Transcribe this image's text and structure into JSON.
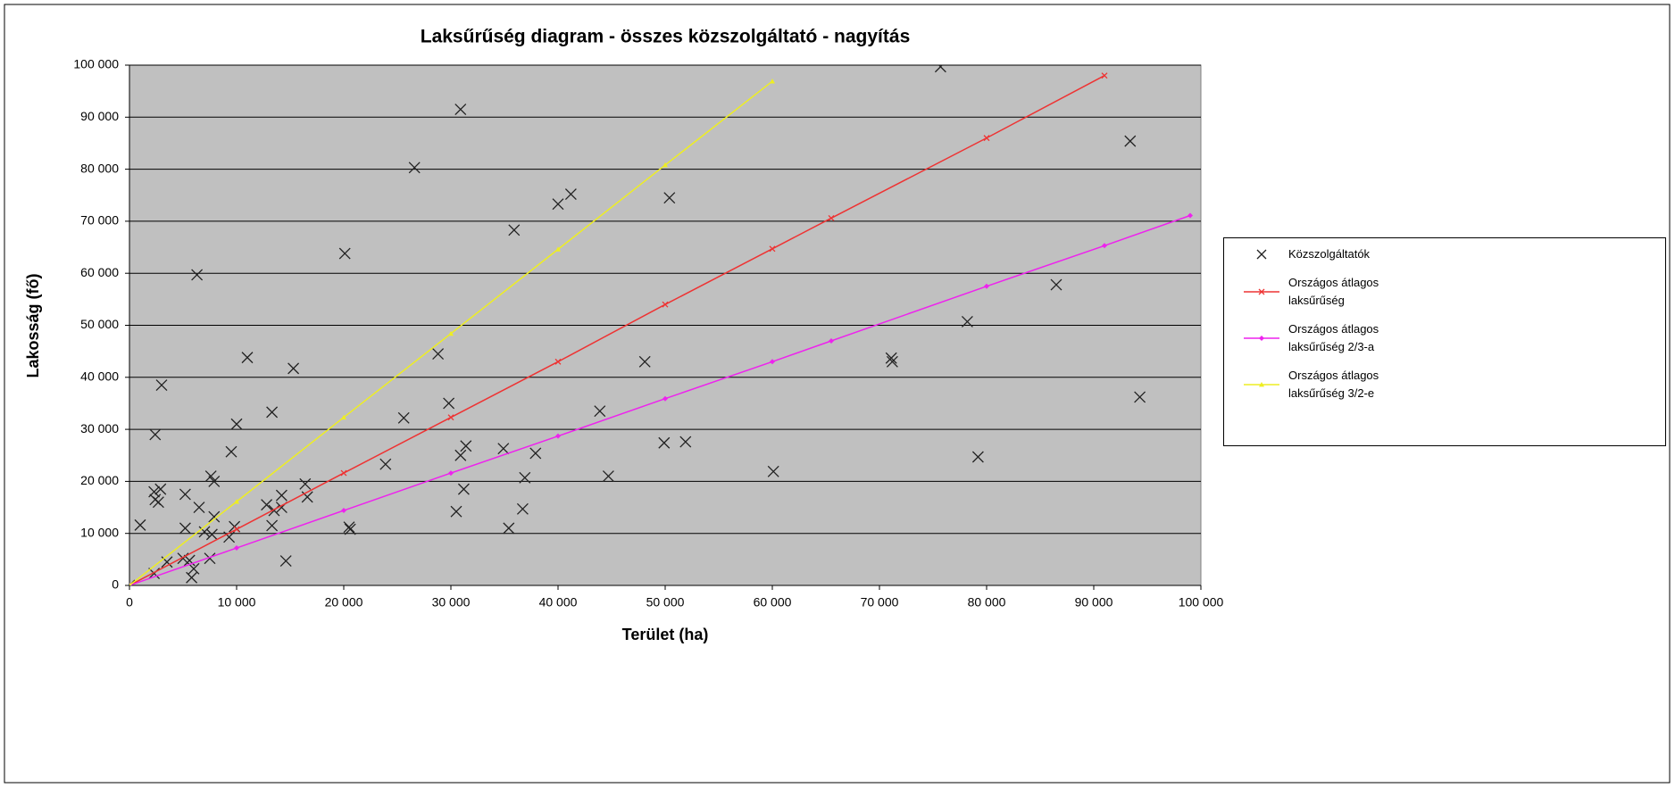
{
  "chart_data": {
    "type": "scatter",
    "title": "Laksűrűség diagram - összes közszolgáltató - nagyítás",
    "x_label": "Terület (ha)",
    "y_label": "Lakosság (fő)",
    "xlim": [
      0,
      100000
    ],
    "ylim": [
      0,
      100000
    ],
    "xticks": [
      0,
      {
        "value": 10000,
        "label": "10 000"
      },
      {
        "value": 20000,
        "label": "20 000"
      },
      {
        "value": 30000,
        "label": "30 000"
      },
      {
        "value": 40000,
        "label": "40 000"
      },
      {
        "value": 50000,
        "label": "50 000"
      },
      {
        "value": 60000,
        "label": "60 000"
      },
      {
        "value": 70000,
        "label": "70 000"
      },
      {
        "value": 80000,
        "label": "80 000"
      },
      {
        "value": 90000,
        "label": "90 000"
      },
      {
        "value": 100000,
        "label": "100 000"
      }
    ],
    "yticks": [
      0,
      {
        "value": 10000,
        "label": "10 000"
      },
      {
        "value": 20000,
        "label": "20 000"
      },
      {
        "value": 30000,
        "label": "30 000"
      },
      {
        "value": 40000,
        "label": "40 000"
      },
      {
        "value": 50000,
        "label": "50 000"
      },
      {
        "value": 60000,
        "label": "60 000"
      },
      {
        "value": 70000,
        "label": "70 000"
      },
      {
        "value": 80000,
        "label": "80 000"
      },
      {
        "value": 90000,
        "label": "90 000"
      },
      {
        "value": 100000,
        "label": "100 000"
      }
    ],
    "grid": true,
    "legend": "right",
    "series": [
      {
        "name": "Közszolgáltatók",
        "color": "#222222",
        "marker": "x",
        "line": false,
        "x": [
          0,
          1000,
          2300,
          2400,
          2400,
          2900,
          2700,
          3000,
          2300,
          3500,
          5000,
          5200,
          5200,
          5600,
          5800,
          6000,
          6300,
          6500,
          7000,
          7500,
          7600,
          7700,
          7900,
          7900,
          9300,
          9500,
          9800,
          10000,
          11000,
          12800,
          13300,
          13300,
          13500,
          14200,
          14200,
          14600,
          15300,
          16400,
          16600,
          20100,
          20500,
          20600,
          23900,
          25600,
          26600,
          28800,
          29800,
          30500,
          30900,
          30900,
          31200,
          31400,
          34900,
          35400,
          35900,
          36700,
          36900,
          37900,
          40000,
          41200,
          43900,
          44700,
          48100,
          49900,
          50400,
          51900,
          60100,
          71100,
          71200,
          75700,
          78200,
          79200,
          86500,
          93400,
          94300
        ],
        "values": [
          0,
          11600,
          18000,
          16500,
          29000,
          18500,
          16000,
          38500,
          2300,
          4500,
          5200,
          17500,
          11000,
          4800,
          1500,
          3200,
          59700,
          15000,
          10300,
          5200,
          21000,
          9800,
          20000,
          13200,
          9300,
          25700,
          11300,
          31000,
          43800,
          15500,
          33300,
          11500,
          14400,
          15000,
          17300,
          4700,
          41700,
          19500,
          17000,
          63800,
          11200,
          10800,
          23300,
          32200,
          80300,
          44500,
          35000,
          14200,
          91500,
          25000,
          18500,
          26800,
          26300,
          11000,
          68300,
          14700,
          20700,
          25400,
          73300,
          75200,
          33500,
          21000,
          43000,
          27400,
          74500,
          27600,
          21900,
          43700,
          43000,
          99700,
          50700,
          24700,
          57800,
          85400,
          36200
        ]
      },
      {
        "name": "Országos átlagos laksűrűség",
        "color": "#ee3333",
        "marker": "x",
        "line": true,
        "x": [
          0,
          10000,
          20000,
          30000,
          40000,
          50000,
          60000,
          65500,
          80000,
          91000
        ],
        "values": [
          0,
          10800,
          21600,
          32300,
          43000,
          54000,
          64700,
          70600,
          86000,
          98000
        ]
      },
      {
        "name": "Országos átlagos laksűrűség 2/3-a",
        "color": "#ee22ee",
        "marker": "diamond",
        "line": true,
        "x": [
          0,
          10000,
          20000,
          30000,
          40000,
          50000,
          60000,
          65500,
          80000,
          91000,
          99000
        ],
        "values": [
          0,
          7200,
          14400,
          21600,
          28700,
          35900,
          43000,
          47000,
          57500,
          65300,
          71100
        ]
      },
      {
        "name": "Országos átlagos laksűrűség 3/2-e",
        "color": "#eeee22",
        "marker": "triangle",
        "line": true,
        "x": [
          0,
          10000,
          20000,
          30000,
          40000,
          50000,
          60000
        ],
        "values": [
          0,
          16100,
          32300,
          48400,
          64600,
          80800,
          96900
        ]
      }
    ]
  }
}
